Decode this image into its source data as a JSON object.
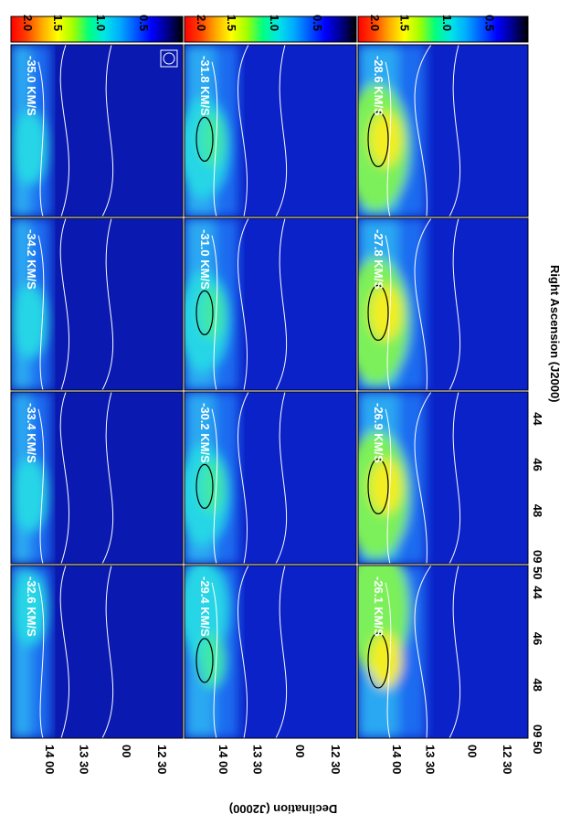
{
  "chart_data": {
    "type": "heatmap",
    "description_orientation": "channel-map grid rendered rotated 90 degrees",
    "xlabel": "Right Ascension (J2000)",
    "ylabel": "Declination (J2000)",
    "x_ticks": [
      "09 50",
      "48",
      "46",
      "44"
    ],
    "y_ticks": [
      "14 00",
      "13 30",
      "00",
      "12 30"
    ],
    "velocity_unit": "KM/S",
    "velocity_labels": [
      "-35.0 KM/S",
      "-34.2 KM/S",
      "-33.4 KM/S",
      "-32.6 KM/S",
      "-31.8 KM/S",
      "-31.0 KM/S",
      "-30.2 KM/S",
      "-29.4 KM/S",
      "-28.6 KM/S",
      "-27.8 KM/S",
      "-26.9 KM/S",
      "-26.1 KM/S"
    ],
    "colorbar": {
      "range": [
        0,
        2.0
      ],
      "ticks": [
        "2.0",
        "1.5",
        "1.0",
        "0.5"
      ],
      "colors": [
        "#000000",
        "#00008c",
        "#0000ff",
        "#0055ff",
        "#00aaff",
        "#00e6e6",
        "#00ff80",
        "#a0ff00",
        "#ffff00",
        "#ffaa00",
        "#ff4000",
        "#ff0000"
      ]
    },
    "beam_symbol": "circle"
  }
}
